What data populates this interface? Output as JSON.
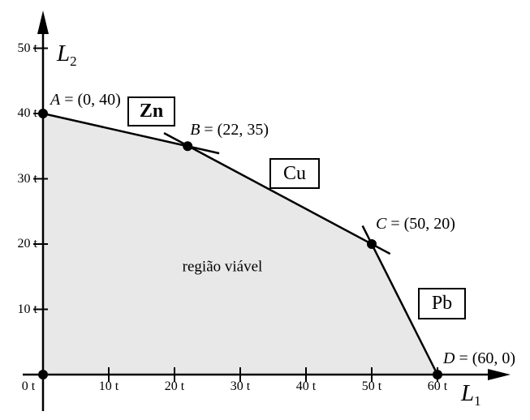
{
  "chart_data": {
    "type": "line",
    "title": "",
    "xlabel": {
      "base": "L",
      "sub": "1"
    },
    "ylabel": {
      "base": "L",
      "sub": "2"
    },
    "x_ticks": [
      {
        "value": 10,
        "label": "10 t"
      },
      {
        "value": 20,
        "label": "20 t"
      },
      {
        "value": 30,
        "label": "30 t"
      },
      {
        "value": 40,
        "label": "40 t"
      },
      {
        "value": 50,
        "label": "50 t"
      },
      {
        "value": 60,
        "label": "60 t"
      }
    ],
    "y_ticks": [
      {
        "value": 10,
        "label": "10 t"
      },
      {
        "value": 20,
        "label": "20 t"
      },
      {
        "value": 30,
        "label": "30 t"
      },
      {
        "value": 40,
        "label": "40 t"
      },
      {
        "value": 50,
        "label": "50 t"
      }
    ],
    "origin_label": "0 t",
    "xlim": [
      0,
      73
    ],
    "ylim": [
      0,
      56
    ],
    "grid": false,
    "legend": "none",
    "region": {
      "label": "região viável",
      "fill": "#e8e8e8",
      "polygon": [
        [
          0,
          0
        ],
        [
          0,
          40
        ],
        [
          22,
          35
        ],
        [
          50,
          20
        ],
        [
          60,
          0
        ]
      ]
    },
    "vertices": [
      {
        "name": "A",
        "x": 0,
        "y": 40,
        "label_rest": "= (0, 40)"
      },
      {
        "name": "B",
        "x": 22,
        "y": 35,
        "label_rest": "= (22, 35)"
      },
      {
        "name": "C",
        "x": 50,
        "y": 20,
        "label_rest": "= (50, 20)"
      },
      {
        "name": "D",
        "x": 60,
        "y": 0,
        "label_rest": "= (60, 0)"
      }
    ],
    "lines": [
      {
        "name": "Zn",
        "from": [
          0,
          40
        ],
        "to": [
          26.8,
          33.9
        ],
        "bold_label": true
      },
      {
        "name": "Cu",
        "from": [
          18.4,
          37
        ],
        "to": [
          52.8,
          18.5
        ],
        "bold_label": false
      },
      {
        "name": "Pb",
        "from": [
          48.6,
          22.8
        ],
        "to": [
          60,
          0
        ],
        "bold_label": false
      }
    ],
    "colors": {
      "stroke": "#000000",
      "region_fill": "#e8e8e8",
      "background": "#ffffff",
      "text": "#000000"
    }
  }
}
